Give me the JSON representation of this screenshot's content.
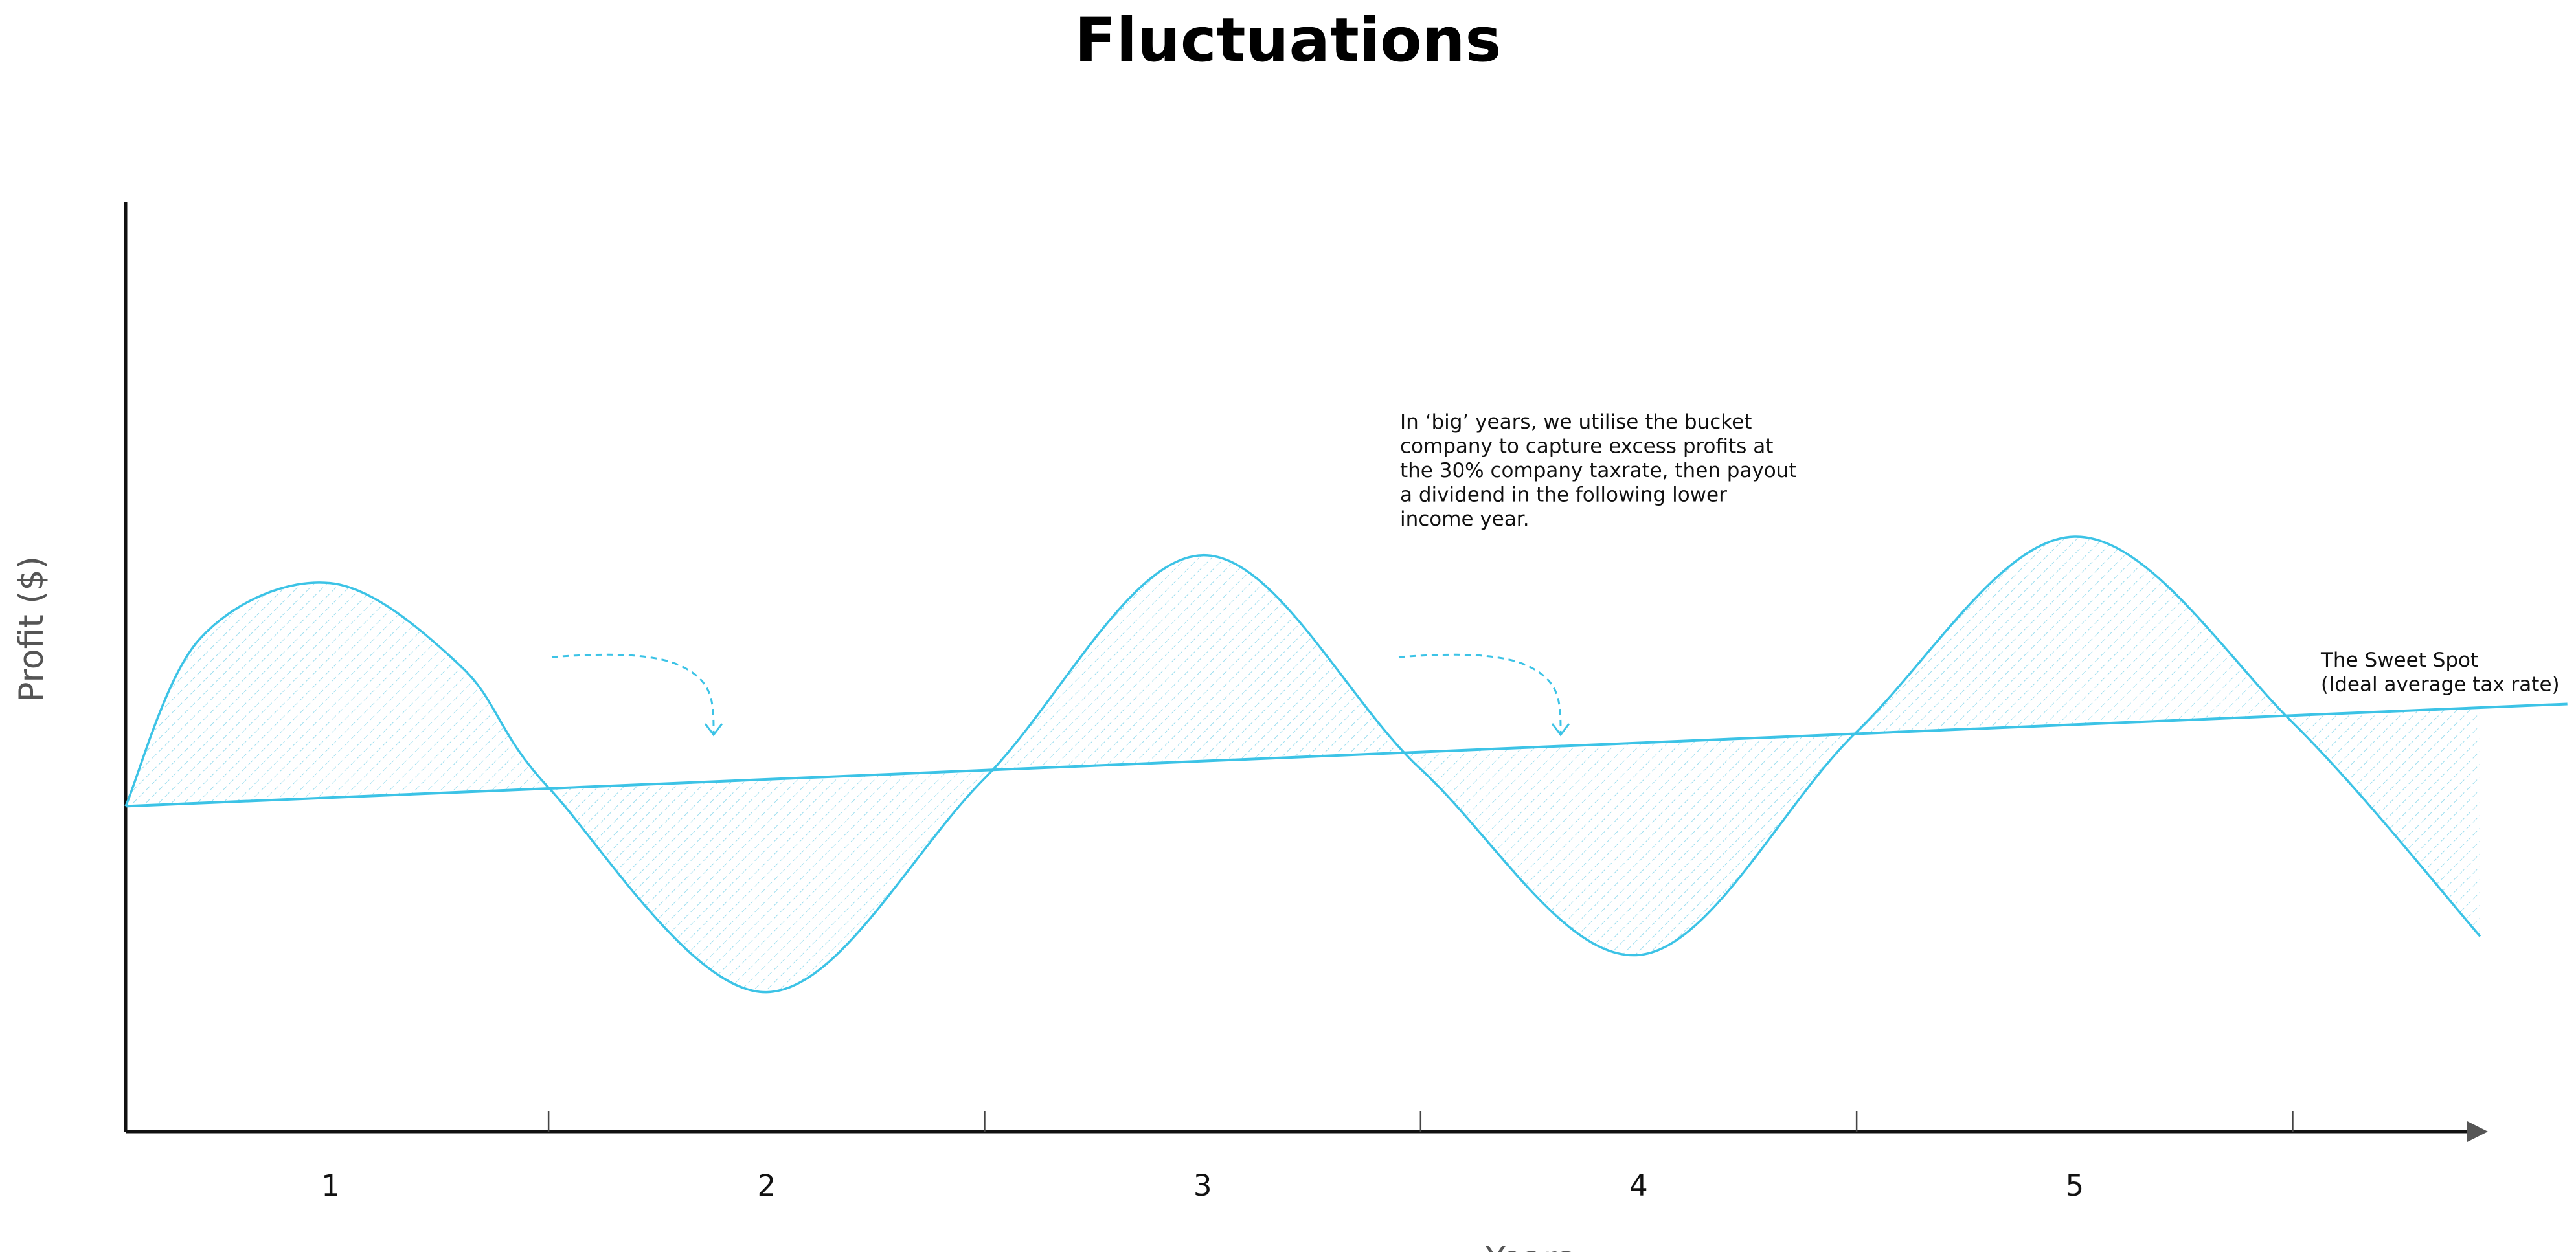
{
  "colors": {
    "accent": "#3CC3E6",
    "axis": "#111111",
    "hatch": "#9ADDEE",
    "label_gray": "#555555"
  },
  "chart_data": {
    "type": "line",
    "title": "Fluctuations",
    "xlabel": "Years",
    "ylabel": "Profit ($)",
    "x_categories": [
      "1",
      "2",
      "3",
      "4",
      "5"
    ],
    "xlim": [
      0.53,
      5.93
    ],
    "ylim": [
      0,
      10
    ],
    "grid": false,
    "series": [
      {
        "kind": "profit-curve",
        "x": [
          0.53,
          0.7,
          1.0,
          1.3,
          1.5,
          2.0,
          2.5,
          3.0,
          3.5,
          4.0,
          4.5,
          5.0,
          5.5,
          5.93
        ],
        "y": [
          3.5,
          5.3,
          5.9,
          5.0,
          3.7,
          1.5,
          3.8,
          6.2,
          3.9,
          1.9,
          4.3,
          6.4,
          4.4,
          2.1
        ]
      },
      {
        "kind": "sweet-spot-line",
        "x": [
          0.53,
          6.13
        ],
        "y": [
          3.5,
          4.6
        ]
      }
    ],
    "annotations": {
      "bucket_note": [
        "In ‘big’ years, we utilise the bucket",
        "company to capture excess profits at",
        "the 30% company taxrate, then payout",
        "a dividend in the following lower",
        "income year."
      ],
      "sweet_spot": [
        "The Sweet Spot",
        "(Ideal average tax rate)"
      ]
    }
  }
}
